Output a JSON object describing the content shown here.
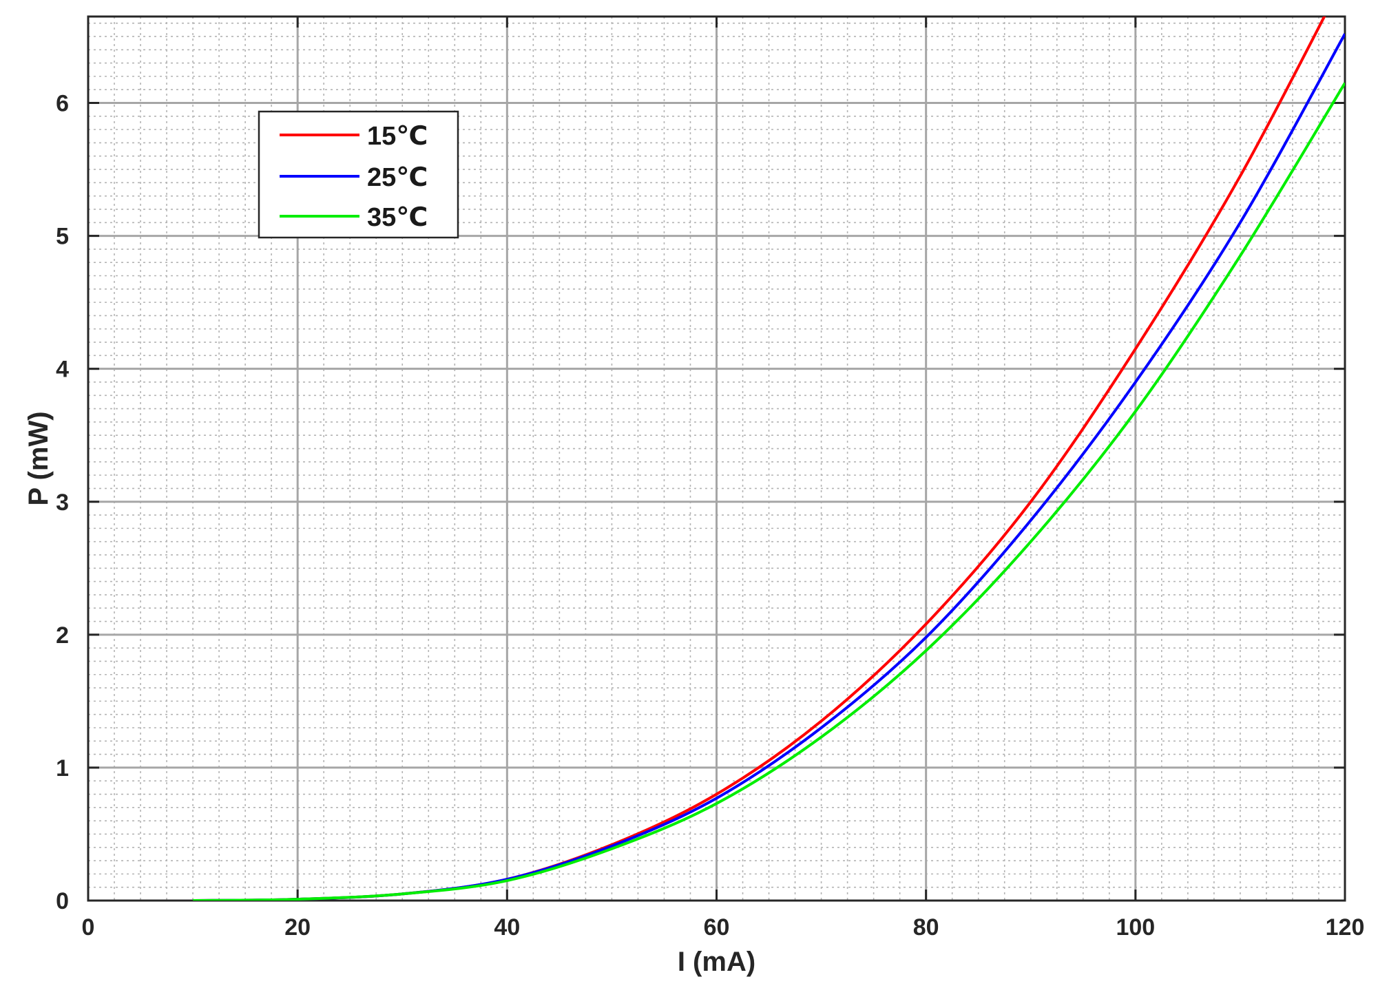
{
  "chart_data": {
    "type": "line",
    "title": "",
    "xlabel": "I (mA)",
    "ylabel": "P (mW)",
    "xlim": [
      0,
      120
    ],
    "ylim": [
      0,
      6.65
    ],
    "xticks": [
      0,
      20,
      40,
      60,
      80,
      100,
      120
    ],
    "yticks": [
      0,
      1,
      2,
      3,
      4,
      5,
      6
    ],
    "xtick_labels": [
      "0",
      "20",
      "40",
      "60",
      "80",
      "100",
      "120"
    ],
    "ytick_labels": [
      "0",
      "1",
      "2",
      "3",
      "4",
      "5",
      "6"
    ],
    "grid": true,
    "minor_grid": true,
    "legend_position": "top-left",
    "x": [
      10,
      20,
      30,
      40,
      50,
      60,
      70,
      80,
      90,
      100,
      110,
      120
    ],
    "series": [
      {
        "name": "15℃",
        "color": "#ff0000",
        "values": [
          0.0,
          0.01,
          0.05,
          0.16,
          0.42,
          0.8,
          1.35,
          2.08,
          3.0,
          4.15,
          5.45,
          6.95
        ]
      },
      {
        "name": "25℃",
        "color": "#0000ff",
        "values": [
          0.0,
          0.01,
          0.05,
          0.16,
          0.41,
          0.77,
          1.3,
          1.98,
          2.86,
          3.9,
          5.1,
          6.52
        ]
      },
      {
        "name": "35℃",
        "color": "#00ee00",
        "values": [
          0.0,
          0.01,
          0.05,
          0.15,
          0.39,
          0.73,
          1.23,
          1.88,
          2.7,
          3.68,
          4.85,
          6.15
        ]
      }
    ]
  }
}
